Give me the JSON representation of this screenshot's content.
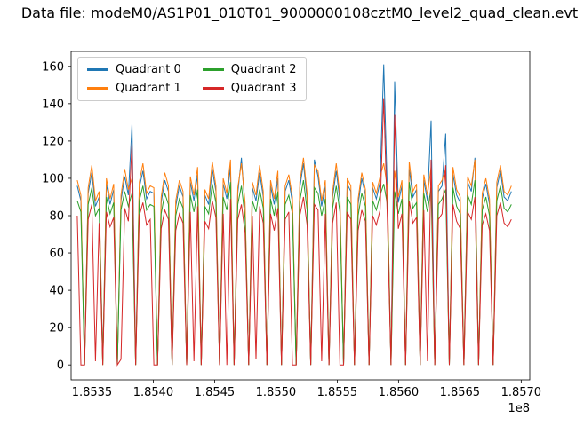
{
  "figure": {
    "background": "#ffffff"
  },
  "chart_data": {
    "type": "line",
    "title": "Data file: modeM0/AS1P01_010T01_9000000108cztM0_level2_quad_clean.evt",
    "xlabel": "",
    "ylabel": "",
    "x_offset_label": "1e8",
    "legend_position": "upper left",
    "grid": false,
    "xlim": [
      185333000,
      185707000
    ],
    "ylim": [
      -8,
      168
    ],
    "x_ticks": [
      185350000,
      185400000,
      185450000,
      185500000,
      185550000,
      185600000,
      185650000,
      185700000
    ],
    "x_tick_labels": [
      "1.8535",
      "1.8540",
      "1.8545",
      "1.8550",
      "1.8555",
      "1.8560",
      "1.8565",
      "1.8570"
    ],
    "y_ticks": [
      0,
      20,
      40,
      60,
      80,
      100,
      120,
      140,
      160
    ],
    "x_start": 185338000,
    "x_end": 185692000,
    "series": [
      {
        "name": "Quadrant 0",
        "color": "#1f77b4",
        "values": [
          96,
          88,
          0,
          92,
          103,
          85,
          90,
          2,
          97,
          86,
          94,
          0,
          88,
          101,
          91,
          129,
          0,
          95,
          104,
          89,
          93,
          92,
          0,
          87,
          99,
          93,
          0,
          85,
          96,
          90,
          0,
          98,
          88,
          102,
          0,
          91,
          86,
          105,
          93,
          0,
          97,
          89,
          106,
          0,
          92,
          111,
          84,
          0,
          95,
          88,
          103,
          90,
          0,
          96,
          86,
          100,
          0,
          93,
          99,
          87,
          0,
          95,
          108,
          89,
          0,
          110,
          101,
          85,
          96,
          0,
          90,
          104,
          88,
          0,
          97,
          93,
          0,
          86,
          100,
          91,
          0,
          95,
          89,
          98,
          161,
          92,
          0,
          152,
          87,
          96,
          0,
          105,
          90,
          94,
          0,
          99,
          88,
          131,
          0,
          93,
          96,
          124,
          0,
          102,
          91,
          87,
          0,
          98,
          93,
          111,
          0,
          89,
          97,
          86,
          0,
          95,
          104,
          90,
          88,
          93
        ]
      },
      {
        "name": "Quadrant 1",
        "color": "#ff7f0e",
        "values": [
          99,
          91,
          0,
          95,
          107,
          88,
          93,
          0,
          100,
          89,
          97,
          0,
          91,
          105,
          94,
          100,
          0,
          98,
          108,
          92,
          96,
          95,
          0,
          90,
          103,
          96,
          0,
          88,
          99,
          93,
          0,
          101,
          91,
          106,
          0,
          94,
          89,
          109,
          96,
          0,
          100,
          92,
          110,
          0,
          95,
          108,
          87,
          0,
          98,
          91,
          107,
          93,
          0,
          99,
          89,
          104,
          0,
          96,
          102,
          90,
          0,
          98,
          111,
          92,
          0,
          107,
          104,
          88,
          99,
          0,
          93,
          108,
          91,
          0,
          100,
          96,
          0,
          89,
          103,
          94,
          0,
          98,
          92,
          101,
          108,
          95,
          0,
          104,
          90,
          99,
          0,
          109,
          93,
          97,
          0,
          102,
          91,
          106,
          0,
          96,
          99,
          105,
          0,
          106,
          94,
          90,
          0,
          101,
          96,
          110,
          0,
          92,
          100,
          89,
          0,
          98,
          107,
          93,
          91,
          96
        ]
      },
      {
        "name": "Quadrant 2",
        "color": "#2ca02c",
        "values": [
          88,
          82,
          0,
          86,
          95,
          80,
          84,
          0,
          90,
          81,
          87,
          0,
          83,
          93,
          85,
          92,
          0,
          88,
          96,
          83,
          86,
          85,
          0,
          81,
          92,
          86,
          0,
          80,
          89,
          84,
          0,
          91,
          82,
          94,
          0,
          85,
          81,
          97,
          87,
          0,
          90,
          83,
          98,
          0,
          86,
          96,
          79,
          0,
          88,
          82,
          94,
          84,
          0,
          89,
          80,
          93,
          0,
          86,
          91,
          81,
          0,
          88,
          99,
          83,
          0,
          95,
          92,
          80,
          89,
          0,
          84,
          96,
          82,
          0,
          90,
          86,
          0,
          80,
          92,
          85,
          0,
          88,
          83,
          91,
          97,
          86,
          0,
          93,
          81,
          89,
          0,
          98,
          84,
          87,
          0,
          92,
          82,
          95,
          0,
          86,
          89,
          94,
          0,
          95,
          85,
          81,
          0,
          91,
          86,
          99,
          0,
          83,
          90,
          80,
          0,
          88,
          96,
          84,
          82,
          86
        ]
      },
      {
        "name": "Quadrant 3",
        "color": "#d62728",
        "values": [
          80,
          0,
          0,
          78,
          86,
          2,
          76,
          0,
          82,
          74,
          79,
          0,
          3,
          84,
          77,
          119,
          0,
          80,
          87,
          75,
          78,
          0,
          0,
          73,
          83,
          78,
          0,
          72,
          81,
          76,
          0,
          82,
          2,
          85,
          0,
          77,
          73,
          88,
          79,
          0,
          81,
          0,
          89,
          0,
          78,
          86,
          71,
          0,
          80,
          3,
          85,
          76,
          0,
          81,
          72,
          84,
          0,
          78,
          82,
          0,
          0,
          80,
          90,
          75,
          0,
          86,
          83,
          2,
          81,
          0,
          76,
          87,
          0,
          0,
          82,
          78,
          0,
          72,
          83,
          77,
          0,
          80,
          75,
          83,
          143,
          78,
          0,
          134,
          73,
          81,
          0,
          88,
          76,
          79,
          0,
          83,
          2,
          110,
          0,
          78,
          81,
          107,
          0,
          86,
          77,
          73,
          0,
          82,
          78,
          90,
          0,
          75,
          81,
          72,
          0,
          80,
          87,
          76,
          74,
          78
        ]
      }
    ]
  }
}
